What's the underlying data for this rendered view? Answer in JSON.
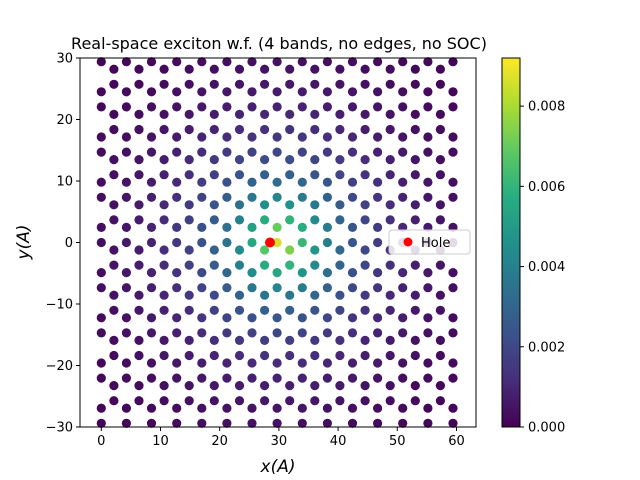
{
  "chart_data": {
    "type": "scatter",
    "title": "Real-space exciton w.f. (4 bands, no edges, no SOC)",
    "xlabel": "x(A)",
    "ylabel": "y(A)",
    "xlim": [
      -3.6,
      63.3
    ],
    "ylim": [
      -30,
      30
    ],
    "xticks": [
      0,
      10,
      20,
      30,
      40,
      50,
      60
    ],
    "yticks": [
      -30,
      -20,
      -10,
      0,
      10,
      20,
      30
    ],
    "grid": false,
    "lattice": {
      "description": "honeycomb lattice sites",
      "bond_length": 2.45,
      "x_range": [
        0,
        60
      ],
      "y_range": [
        -29.5,
        29.5
      ]
    },
    "hole": {
      "name": "Hole",
      "x": 28.5,
      "y": 0.0,
      "color": "#ff0000"
    },
    "wavefunction": {
      "center_x": 30.2,
      "center_y": 0.0,
      "peak": 0.0091,
      "decay_length": 9.5
    },
    "colorbar": {
      "cmap": "viridis",
      "min": 0.0,
      "max": 0.0092,
      "ticks": [
        "0.000",
        "0.002",
        "0.004",
        "0.006",
        "0.008"
      ],
      "tick_values": [
        0.0,
        0.002,
        0.004,
        0.006,
        0.008
      ]
    },
    "legend": {
      "entries": [
        "Hole"
      ],
      "placement": "right"
    }
  }
}
